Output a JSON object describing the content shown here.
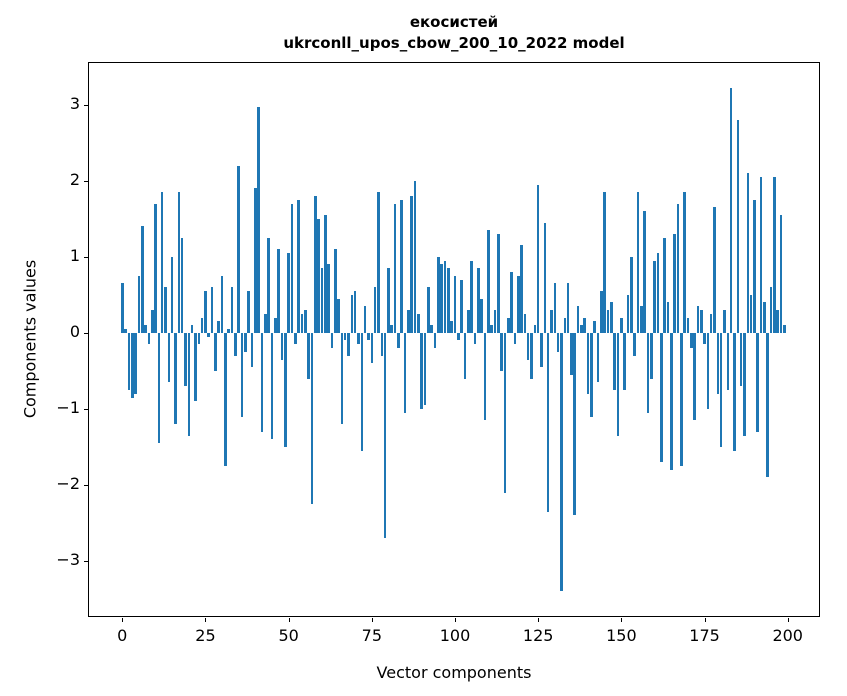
{
  "chart_data": {
    "type": "bar",
    "title_line1": "екосистей",
    "title_line2": "ukrconll_upos_cbow_200_10_2022 model",
    "xlabel": "Vector components",
    "ylabel": "Components values",
    "bar_color": "#1f77b4",
    "xlim": [
      -10,
      210
    ],
    "ylim": [
      -3.75,
      3.55
    ],
    "xticks": [
      0,
      25,
      50,
      75,
      100,
      125,
      150,
      175,
      200
    ],
    "yticks": [
      -3,
      -2,
      -1,
      0,
      1,
      2,
      3
    ],
    "grid": false,
    "legend": "none",
    "values": [
      0.65,
      0.05,
      -0.75,
      -0.85,
      -0.8,
      0.75,
      1.4,
      0.1,
      -0.15,
      0.3,
      1.7,
      -1.45,
      1.85,
      0.6,
      -0.65,
      1.0,
      -1.2,
      1.85,
      1.25,
      -0.7,
      -1.35,
      0.1,
      -0.9,
      -0.15,
      0.2,
      0.55,
      -0.05,
      0.6,
      -0.5,
      0.15,
      0.75,
      -1.75,
      0.05,
      0.6,
      -0.3,
      2.2,
      -1.1,
      -0.25,
      0.55,
      -0.45,
      1.9,
      2.97,
      -1.3,
      0.25,
      1.25,
      -1.4,
      0.2,
      1.1,
      -0.35,
      -1.5,
      1.05,
      1.7,
      -0.15,
      1.75,
      0.25,
      0.3,
      -0.6,
      -2.25,
      1.8,
      1.5,
      0.85,
      1.55,
      0.9,
      -0.2,
      1.1,
      0.45,
      -1.2,
      -0.1,
      -0.3,
      0.5,
      0.55,
      -0.15,
      -1.55,
      0.35,
      -0.1,
      -0.4,
      0.6,
      1.85,
      -0.3,
      -2.7,
      0.85,
      0.1,
      1.7,
      -0.2,
      1.75,
      -1.05,
      0.3,
      1.8,
      2.0,
      0.25,
      -1.0,
      -0.95,
      0.6,
      0.1,
      -0.2,
      1.0,
      0.9,
      0.95,
      0.85,
      0.15,
      0.75,
      -0.1,
      0.7,
      -0.6,
      0.3,
      0.95,
      -0.15,
      0.85,
      0.45,
      -1.15,
      1.35,
      0.1,
      0.3,
      1.3,
      -0.5,
      -2.1,
      0.2,
      0.8,
      -0.15,
      0.75,
      1.15,
      0.25,
      -0.35,
      -0.6,
      0.1,
      1.95,
      -0.45,
      1.45,
      -2.35,
      0.3,
      0.65,
      -0.25,
      -3.4,
      0.2,
      0.65,
      -0.55,
      -2.4,
      0.35,
      0.1,
      0.2,
      -0.8,
      -1.1,
      0.15,
      -0.65,
      0.55,
      1.85,
      0.3,
      0.4,
      -0.75,
      -1.35,
      0.2,
      -0.75,
      0.5,
      1.0,
      -0.3,
      1.85,
      0.35,
      1.6,
      -1.05,
      -0.6,
      0.95,
      1.05,
      -1.7,
      1.25,
      0.4,
      -1.8,
      1.3,
      1.7,
      -1.75,
      1.85,
      0.2,
      -0.2,
      -1.15,
      0.35,
      0.3,
      -0.15,
      -1.0,
      0.25,
      1.65,
      -0.8,
      -1.5,
      0.3,
      -0.75,
      3.22,
      -1.55,
      2.8,
      -0.7,
      -1.35,
      2.1,
      0.5,
      1.75,
      -1.3,
      2.05,
      0.4,
      -1.9,
      0.6,
      2.05,
      0.3,
      1.55,
      0.1
    ]
  }
}
